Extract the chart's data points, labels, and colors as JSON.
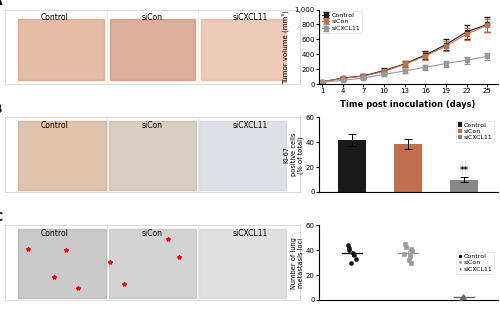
{
  "tumor_days": [
    1,
    4,
    7,
    10,
    13,
    16,
    19,
    22,
    25
  ],
  "tumor_control": [
    30,
    80,
    110,
    180,
    270,
    390,
    530,
    700,
    800
  ],
  "tumor_sicon": [
    30,
    75,
    105,
    170,
    265,
    375,
    510,
    670,
    790
  ],
  "tumor_sicxcl11": [
    25,
    50,
    80,
    130,
    175,
    225,
    275,
    320,
    370
  ],
  "tumor_control_err": [
    10,
    20,
    25,
    35,
    40,
    55,
    70,
    90,
    95
  ],
  "tumor_sicon_err": [
    10,
    18,
    22,
    30,
    38,
    50,
    65,
    85,
    90
  ],
  "tumor_sicxcl11_err": [
    8,
    12,
    18,
    22,
    28,
    35,
    40,
    45,
    50
  ],
  "ki67_groups": [
    "Control",
    "siCon",
    "siCXCL11"
  ],
  "ki67_values": [
    42,
    39,
    10
  ],
  "ki67_errors": [
    5,
    4,
    2
  ],
  "ki67_colors": [
    "#1a1a1a",
    "#c0704a",
    "#888888"
  ],
  "scatter_control": [
    30,
    33,
    36,
    38,
    40,
    42,
    44
  ],
  "scatter_sicon": [
    30,
    32,
    35,
    37,
    39,
    41,
    43,
    45
  ],
  "scatter_sicxcl11": [
    1,
    2,
    2,
    3
  ],
  "line_color_control": "#1a1a1a",
  "line_color_sicon": "#c0704a",
  "line_color_sicxcl11": "#999999",
  "tumor_xlabel": "Time post inoculation (days)",
  "tumor_ylabel": "Tumor volume (mm³)",
  "ki67_ylabel": "Ki-67\npositive cells\n(% of total)",
  "scatter_ylabel": "Number of lung\nmetastasis loci",
  "significance_label": "**",
  "panel_A_label": "A",
  "panel_B_label": "B",
  "panel_C_label": "C",
  "img_A_labels": [
    "Control",
    "siCon",
    "siCXCL11"
  ],
  "img_B_labels": [
    "Control",
    "siCon",
    "siCXCL11"
  ],
  "img_C_labels": [
    "Control",
    "siCon",
    "siCXCL11"
  ]
}
